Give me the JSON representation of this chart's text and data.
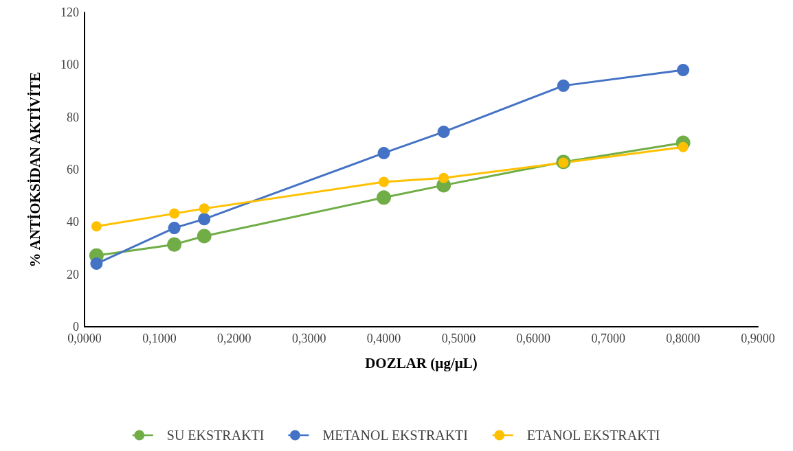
{
  "chart_data": {
    "type": "line",
    "xlabel": "DOZLAR (µg/µL)",
    "ylabel": "% ANTİOKSİDAN AKTİVİTE",
    "x": [
      0.016,
      0.12,
      0.16,
      0.4,
      0.48,
      0.64,
      0.8
    ],
    "series": [
      {
        "name": "SU EKSTRAKTI",
        "color": "#70ad47",
        "values": [
          27.2,
          31.4,
          34.6,
          49.3,
          54,
          62.9,
          70.2
        ]
      },
      {
        "name": "METANOL EKSTRAKTI",
        "color": "#4472c4",
        "values": [
          24.1,
          37.7,
          41.1,
          66.3,
          74.4,
          92,
          98
        ]
      },
      {
        "name": "ETANOL EKSTRAKTI",
        "color": "#ffc000",
        "values": [
          38.3,
          43.2,
          45.1,
          55.3,
          56.8,
          62.6,
          68.6
        ]
      }
    ],
    "xlim": [
      0,
      0.9
    ],
    "xticks": [
      {
        "value": 0,
        "label": "0,0000"
      },
      {
        "value": 0.1,
        "label": "0,1000"
      },
      {
        "value": 0.2,
        "label": "0,2000"
      },
      {
        "value": 0.3,
        "label": "0,3000"
      },
      {
        "value": 0.4,
        "label": "0,4000"
      },
      {
        "value": 0.5,
        "label": "0,5000"
      },
      {
        "value": 0.6,
        "label": "0,6000"
      },
      {
        "value": 0.7,
        "label": "0,7000"
      },
      {
        "value": 0.8,
        "label": "0,8000"
      },
      {
        "value": 0.9,
        "label": "0,9000"
      }
    ],
    "ylim": [
      0,
      120
    ],
    "yticks": [
      0,
      20,
      40,
      60,
      80,
      100,
      120
    ],
    "grid": false,
    "legend": "bottom",
    "marker": "circle",
    "line_style": "solid"
  }
}
